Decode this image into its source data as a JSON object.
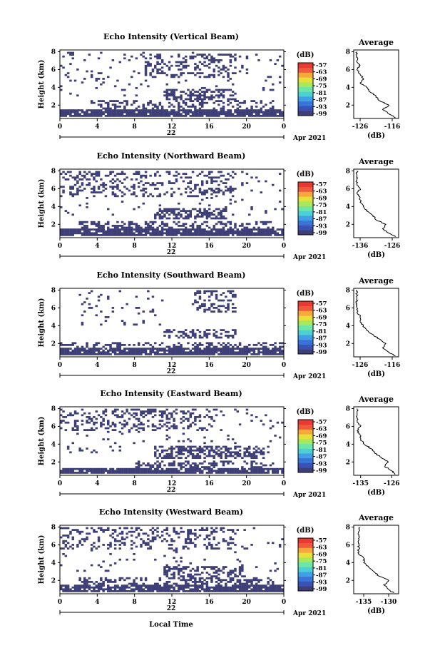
{
  "figure": {
    "x_label": "Local Time",
    "date_label": "Apr 2021",
    "day_label": "22",
    "y_label": "Height (km)",
    "avg_title": "Average",
    "colorbar_unit": "(dB)",
    "avg_x_unit": "(dB)",
    "colors": {
      "echo": "#3f3f78",
      "avg_line": "#000000"
    },
    "colorbar_colors": [
      "#3f3f78",
      "#3a52b4",
      "#3a74d8",
      "#3fa0e6",
      "#4cd0d6",
      "#6ee7a6",
      "#a8e85c",
      "#e6e03a",
      "#f6a83c",
      "#f05a3c",
      "#e83a30"
    ]
  },
  "chart_data": [
    {
      "type": "heatmap",
      "title": "Echo Intensity (Vertical Beam)",
      "x_ticks": [
        "0",
        "4",
        "8",
        "12",
        "16",
        "20",
        "0"
      ],
      "xlim": [
        0,
        24
      ],
      "y_ticks": [
        "2",
        "4",
        "6",
        "8"
      ],
      "ylim": [
        0.5,
        8.2
      ],
      "colorbar_ticks": [
        "-57",
        "-63",
        "-69",
        "-75",
        "-81",
        "-87",
        "-93",
        "-99"
      ],
      "echo_bands": [
        {
          "y": [
            0.6,
            1.6
          ],
          "cover": 0.92,
          "x": [
            0,
            24
          ]
        },
        {
          "y": [
            1.6,
            2.5
          ],
          "cover": 0.35,
          "x": [
            3,
            23
          ]
        },
        {
          "y": [
            2.5,
            3.8
          ],
          "cover": 0.55,
          "x": [
            11,
            19
          ]
        },
        {
          "y": [
            5.0,
            7.8
          ],
          "cover": 0.35,
          "x": [
            9,
            19
          ]
        },
        {
          "y": [
            3.0,
            8.0
          ],
          "cover": 0.06,
          "x": [
            0,
            24
          ]
        }
      ],
      "average": {
        "xticks": [
          "-126",
          "-116"
        ],
        "xlim": [
          -128,
          -114
        ],
        "y": [
          0.6,
          1.0,
          1.5,
          2.0,
          2.5,
          3.0,
          3.5,
          4.0,
          4.5,
          5.0,
          5.5,
          6.0,
          6.5,
          7.0,
          7.5,
          8.0
        ],
        "x": [
          -115,
          -117,
          -119,
          -117,
          -120,
          -121,
          -123,
          -124,
          -126,
          -125,
          -126,
          -127,
          -126,
          -127,
          -127,
          -127
        ]
      }
    },
    {
      "type": "heatmap",
      "title": "Echo Intensity (Northward Beam)",
      "x_ticks": [
        "0",
        "4",
        "8",
        "12",
        "16",
        "20",
        "0"
      ],
      "xlim": [
        0,
        24
      ],
      "y_ticks": [
        "2",
        "4",
        "6",
        "8"
      ],
      "ylim": [
        0.5,
        8.2
      ],
      "colorbar_ticks": [
        "-57",
        "-63",
        "-69",
        "-75",
        "-81",
        "-87",
        "-93",
        "-99"
      ],
      "echo_bands": [
        {
          "y": [
            0.6,
            1.5
          ],
          "cover": 0.9,
          "x": [
            0,
            24
          ]
        },
        {
          "y": [
            1.5,
            2.4
          ],
          "cover": 0.4,
          "x": [
            2,
            23
          ]
        },
        {
          "y": [
            2.5,
            3.8
          ],
          "cover": 0.6,
          "x": [
            10,
            18
          ]
        },
        {
          "y": [
            5.0,
            8.0
          ],
          "cover": 0.3,
          "x": [
            0,
            19
          ]
        },
        {
          "y": [
            3.0,
            8.0
          ],
          "cover": 0.05,
          "x": [
            0,
            24
          ]
        }
      ],
      "average": {
        "xticks": [
          "-136",
          "-126"
        ],
        "xlim": [
          -138,
          -124
        ],
        "y": [
          0.6,
          1.0,
          1.5,
          2.0,
          2.5,
          3.0,
          3.5,
          4.0,
          4.5,
          5.0,
          5.5,
          6.0,
          6.5,
          7.0,
          7.5,
          8.0
        ],
        "x": [
          -125,
          -127,
          -129,
          -128,
          -131,
          -132,
          -134,
          -135,
          -136,
          -136,
          -137,
          -136,
          -137,
          -137,
          -137,
          -137
        ]
      }
    },
    {
      "type": "heatmap",
      "title": "Echo Intensity (Southward Beam)",
      "x_ticks": [
        "0",
        "4",
        "8",
        "12",
        "16",
        "20",
        "0"
      ],
      "xlim": [
        0,
        24
      ],
      "y_ticks": [
        "2",
        "4",
        "6",
        "8"
      ],
      "ylim": [
        0.5,
        8.2
      ],
      "colorbar_ticks": [
        "-57",
        "-63",
        "-69",
        "-75",
        "-81",
        "-87",
        "-93",
        "-99"
      ],
      "echo_bands": [
        {
          "y": [
            0.6,
            1.6
          ],
          "cover": 0.92,
          "x": [
            0,
            24
          ]
        },
        {
          "y": [
            1.6,
            2.2
          ],
          "cover": 0.4,
          "x": [
            0,
            24
          ]
        },
        {
          "y": [
            2.5,
            3.6
          ],
          "cover": 0.4,
          "x": [
            11,
            19
          ]
        },
        {
          "y": [
            5.5,
            8.0
          ],
          "cover": 0.35,
          "x": [
            14,
            19
          ]
        },
        {
          "y": [
            4.0,
            8.0
          ],
          "cover": 0.07,
          "x": [
            2,
            11
          ]
        }
      ],
      "average": {
        "xticks": [
          "-126",
          "-116"
        ],
        "xlim": [
          -128,
          -114
        ],
        "y": [
          0.6,
          1.0,
          1.5,
          2.0,
          2.5,
          3.0,
          3.5,
          4.0,
          4.5,
          5.0,
          5.5,
          6.0,
          6.5,
          7.0,
          7.5,
          8.0
        ],
        "x": [
          -115,
          -117,
          -119,
          -118,
          -120,
          -122,
          -124,
          -125,
          -126,
          -126,
          -127,
          -127,
          -127,
          -127,
          -127,
          -127
        ]
      }
    },
    {
      "type": "heatmap",
      "title": "Echo Intensity (Eastward Beam)",
      "x_ticks": [
        "0",
        "4",
        "8",
        "12",
        "16",
        "20",
        "0"
      ],
      "xlim": [
        0,
        24
      ],
      "y_ticks": [
        "2",
        "4",
        "6",
        "8"
      ],
      "ylim": [
        0.5,
        8.2
      ],
      "colorbar_ticks": [
        "-57",
        "-63",
        "-69",
        "-75",
        "-81",
        "-87",
        "-93",
        "-99"
      ],
      "echo_bands": [
        {
          "y": [
            0.6,
            1.4
          ],
          "cover": 0.9,
          "x": [
            0,
            24
          ]
        },
        {
          "y": [
            1.4,
            2.2
          ],
          "cover": 0.35,
          "x": [
            8,
            23
          ]
        },
        {
          "y": [
            2.4,
            3.8
          ],
          "cover": 0.55,
          "x": [
            10,
            22
          ]
        },
        {
          "y": [
            5.5,
            8.0
          ],
          "cover": 0.3,
          "x": [
            0,
            17
          ]
        },
        {
          "y": [
            3.0,
            8.0
          ],
          "cover": 0.05,
          "x": [
            0,
            24
          ]
        }
      ],
      "average": {
        "xticks": [
          "-135",
          "-126"
        ],
        "xlim": [
          -137,
          -124
        ],
        "y": [
          0.6,
          1.0,
          1.5,
          2.0,
          2.5,
          3.0,
          3.5,
          4.0,
          4.5,
          5.0,
          5.5,
          6.0,
          6.5,
          7.0,
          7.5,
          8.0
        ],
        "x": [
          -125,
          -126,
          -128,
          -127,
          -129,
          -131,
          -132,
          -134,
          -135,
          -135,
          -136,
          -135,
          -136,
          -136,
          -136,
          -136
        ]
      }
    },
    {
      "type": "heatmap",
      "title": "Echo Intensity (Westward Beam)",
      "x_ticks": [
        "0",
        "4",
        "8",
        "12",
        "16",
        "20",
        "0"
      ],
      "xlim": [
        0,
        24
      ],
      "y_ticks": [
        "2",
        "4",
        "6",
        "8"
      ],
      "ylim": [
        0.5,
        8.2
      ],
      "colorbar_ticks": [
        "-57",
        "-63",
        "-69",
        "-75",
        "-81",
        "-87",
        "-93",
        "-99"
      ],
      "echo_bands": [
        {
          "y": [
            0.6,
            1.5
          ],
          "cover": 0.88,
          "x": [
            0,
            24
          ]
        },
        {
          "y": [
            1.5,
            2.3
          ],
          "cover": 0.4,
          "x": [
            2,
            23
          ]
        },
        {
          "y": [
            2.4,
            3.6
          ],
          "cover": 0.5,
          "x": [
            11,
            20
          ]
        },
        {
          "y": [
            5.5,
            8.0
          ],
          "cover": 0.3,
          "x": [
            0,
            19
          ]
        },
        {
          "y": [
            3.0,
            8.0
          ],
          "cover": 0.05,
          "x": [
            0,
            24
          ]
        }
      ],
      "average": {
        "xticks": [
          "-135",
          "-130"
        ],
        "xlim": [
          -137,
          -128
        ],
        "y": [
          0.6,
          1.0,
          1.5,
          2.0,
          2.5,
          3.0,
          3.5,
          4.0,
          4.5,
          5.0,
          5.5,
          6.0,
          6.5,
          7.0,
          7.5,
          8.0
        ],
        "x": [
          -129,
          -130,
          -131,
          -130,
          -132,
          -133,
          -134,
          -135,
          -135,
          -136,
          -136,
          -136,
          -136,
          -136,
          -136,
          -136
        ]
      }
    }
  ]
}
